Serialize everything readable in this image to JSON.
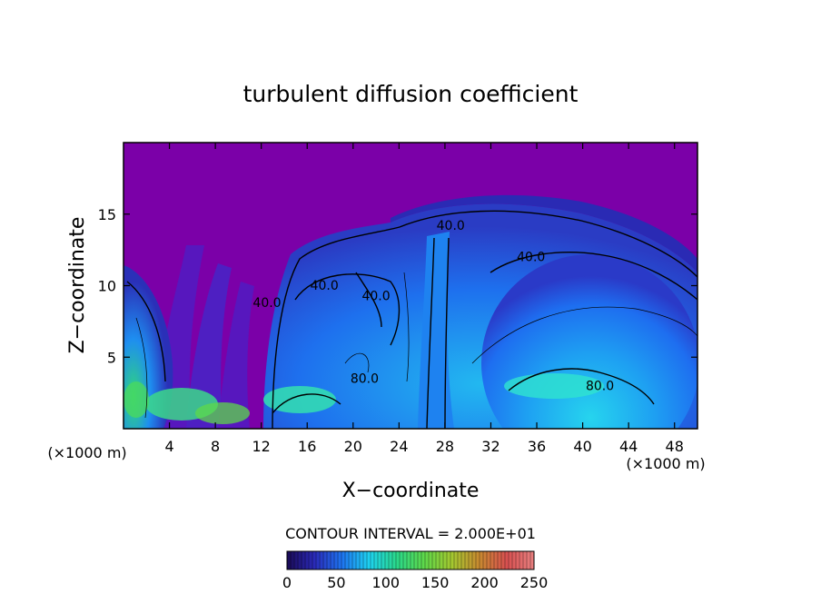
{
  "chart_data": {
    "type": "heatmap",
    "title": "turbulent diffusion coefficient",
    "xlabel": "X−coordinate",
    "ylabel": "Z−coordinate",
    "x_unit_left": "(×1000 m)",
    "x_unit_right": "(×1000 m)",
    "xlim": [
      0,
      50
    ],
    "ylim": [
      0,
      20
    ],
    "x_ticks": [
      4,
      8,
      12,
      16,
      20,
      24,
      28,
      32,
      36,
      40,
      44,
      48
    ],
    "y_ticks": [
      5,
      10,
      15
    ],
    "contour_interval_text": "CONTOUR INTERVAL = 2.000E+01",
    "contour_labels": [
      {
        "text": "40.0",
        "x": 28.5,
        "y": 13.9
      },
      {
        "text": "40.0",
        "x": 35.5,
        "y": 11.7
      },
      {
        "text": "40.0",
        "x": 17.5,
        "y": 9.7
      },
      {
        "text": "40.0",
        "x": 22.0,
        "y": 9.0
      },
      {
        "text": "40.0",
        "x": 12.5,
        "y": 8.5
      },
      {
        "text": "80.0",
        "x": 41.5,
        "y": 2.7
      },
      {
        "text": "80.0",
        "x": 21.0,
        "y": 3.2
      }
    ],
    "colorbar": {
      "ticks": [
        0,
        50,
        100,
        150,
        200,
        250
      ],
      "range": [
        0,
        250
      ],
      "colors": [
        "#1a0a55",
        "#2a2ab8",
        "#1e74f0",
        "#1ed2f0",
        "#2ad88a",
        "#5ed84a",
        "#a4c830",
        "#c88a30",
        "#d85050",
        "#e88080"
      ]
    },
    "colors": {
      "background_field": "#7b00a8",
      "low": "#2a2ab8",
      "mid": "#1e74f0",
      "high": "#1ed2f0",
      "very_high": "#3ce07a",
      "contour": "#000000"
    }
  }
}
